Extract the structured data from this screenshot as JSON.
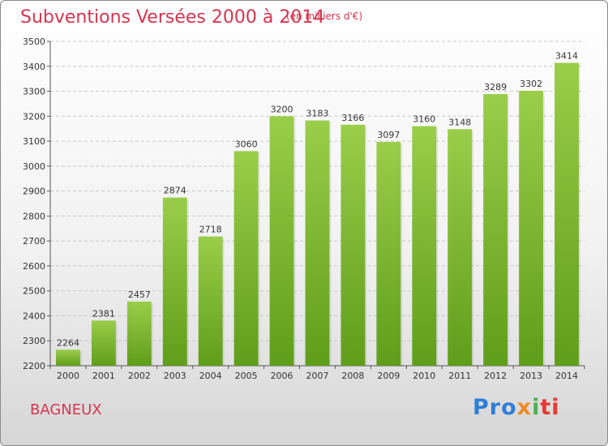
{
  "title": "Subventions Versées 2000 à 2014",
  "subtitle": "(en milliers d'€)",
  "city": "BAGNEUX",
  "logo": {
    "part1": "Pro",
    "part2": "x",
    "part3": "i",
    "part4": "ti"
  },
  "colors": {
    "title": "#d9344e",
    "bar_top": "#9acd4a",
    "bar_bottom": "#5f9e1a"
  },
  "chart_data": {
    "type": "bar",
    "categories": [
      "2000",
      "2001",
      "2002",
      "2003",
      "2004",
      "2005",
      "2006",
      "2007",
      "2008",
      "2009",
      "2010",
      "2011",
      "2012",
      "2013",
      "2014"
    ],
    "values": [
      2264,
      2381,
      2457,
      2874,
      2718,
      3060,
      3200,
      3183,
      3166,
      3097,
      3160,
      3148,
      3289,
      3302,
      3414
    ],
    "yticks": [
      2200,
      2300,
      2400,
      2500,
      2600,
      2700,
      2800,
      2900,
      3000,
      3100,
      3200,
      3300,
      3400,
      3500
    ],
    "ylim": [
      2200,
      3500
    ],
    "grid": true,
    "title": "Subventions Versées 2000 à 2014",
    "xlabel": "",
    "ylabel": ""
  }
}
